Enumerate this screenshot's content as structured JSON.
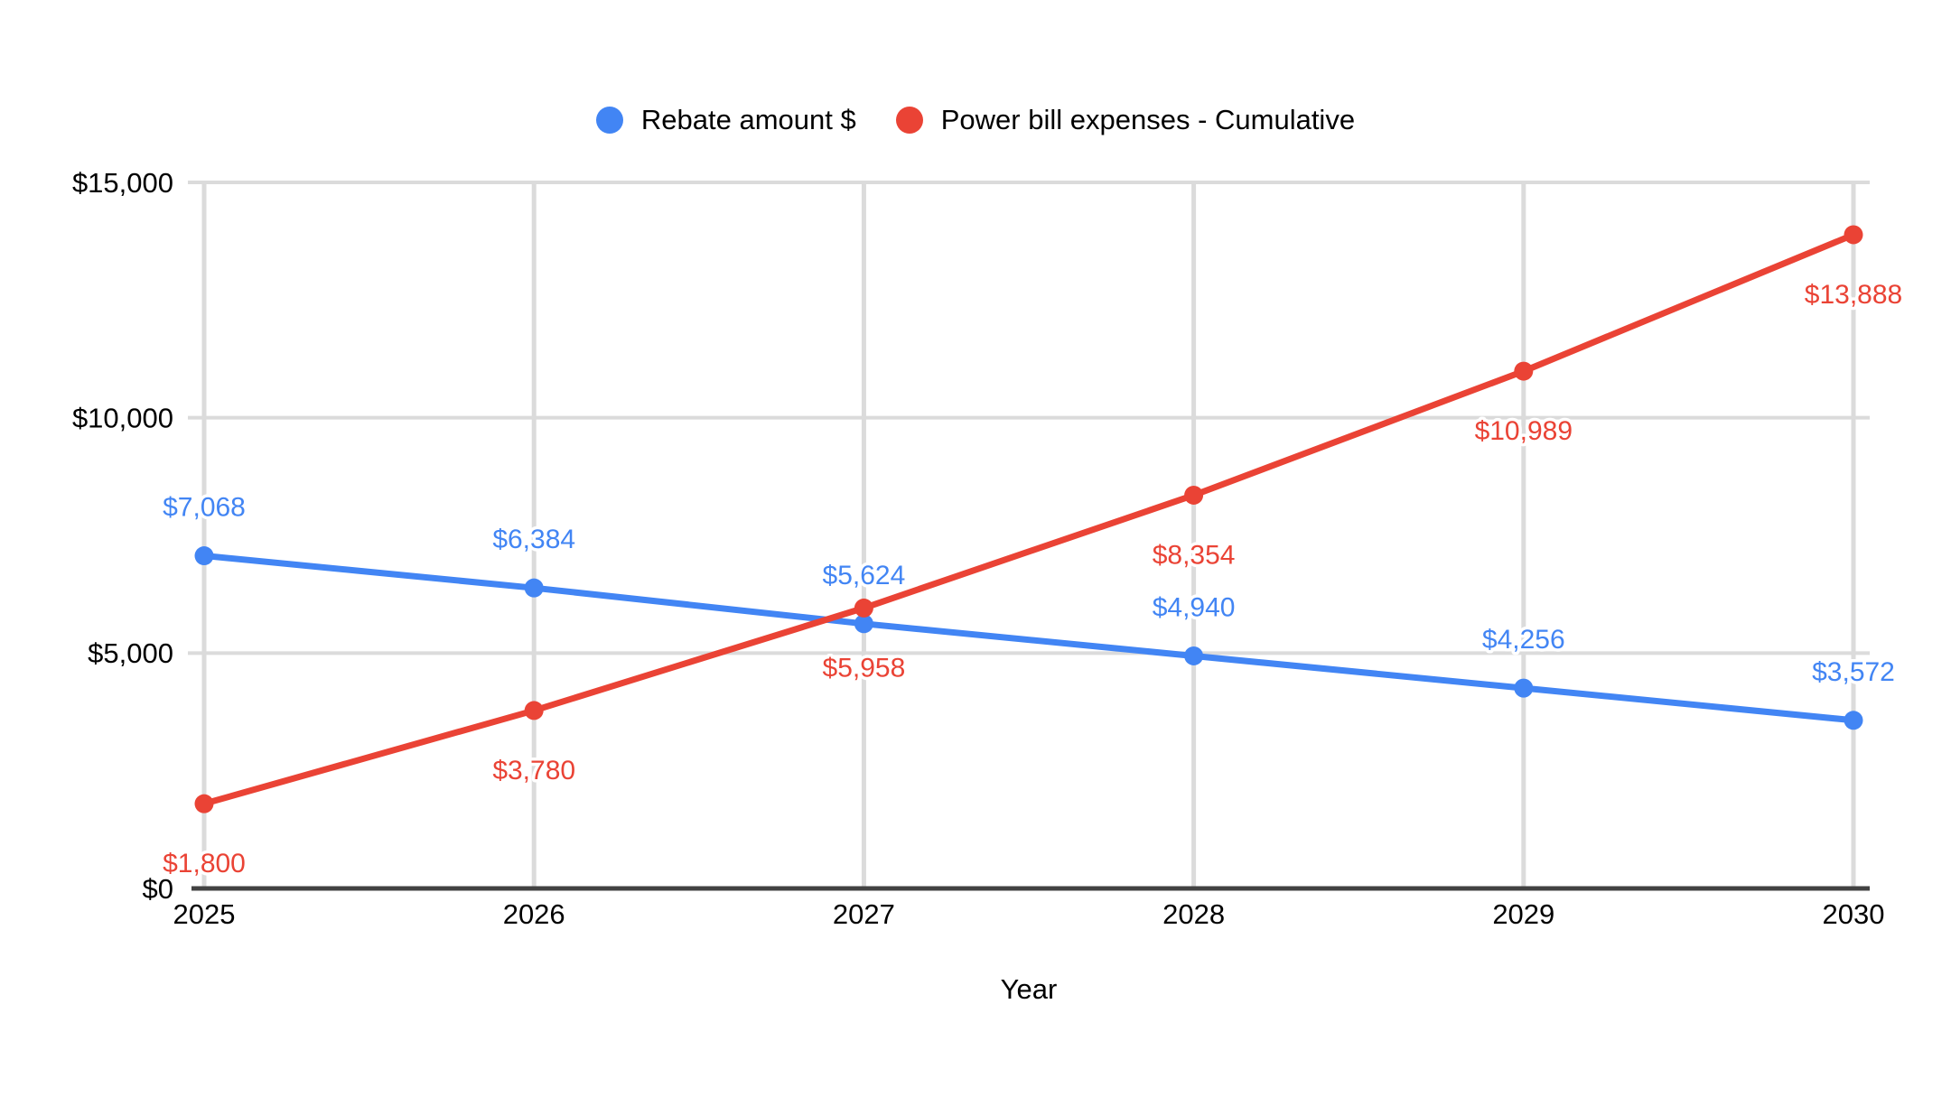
{
  "chart_data": {
    "type": "line",
    "title": "",
    "xlabel": "Year",
    "ylabel": "",
    "x": [
      2025,
      2026,
      2027,
      2028,
      2029,
      2030
    ],
    "x_labels": [
      "2025",
      "2026",
      "2027",
      "2028",
      "2029",
      "2030"
    ],
    "ylim": [
      0,
      15000
    ],
    "grid": true,
    "legend_position": "top-center",
    "y_ticks": [
      {
        "value": 15000,
        "label": "$15,000"
      },
      {
        "value": 10000,
        "label": "$10,000"
      },
      {
        "value": 5000,
        "label": "$5,000"
      },
      {
        "value": 0,
        "label": "$0"
      }
    ],
    "series": [
      {
        "name": "Rebate amount $",
        "color": "#4285F4",
        "values": [
          7068,
          6384,
          5624,
          4940,
          4256,
          3572
        ],
        "labels": [
          "$7,068",
          "$6,384",
          "$5,624",
          "$4,940",
          "$4,256",
          "$3,572"
        ],
        "label_side": "above"
      },
      {
        "name": "Power bill expenses - Cumulative",
        "color": "#EA4335",
        "values": [
          1800,
          3780,
          5958,
          8354,
          10989,
          13888
        ],
        "labels": [
          "$1,800",
          "$3,780",
          "$5,958",
          "$8,354",
          "$10,989",
          "$13,888"
        ],
        "label_side": "below"
      }
    ]
  },
  "colors": {
    "background": "#FFFFFF",
    "gridline": "#DBDBDB",
    "axis_line": "#424242",
    "tick_text": "#000000",
    "axis_title_text": "#000000",
    "label_halo": "#FFFFFF"
  }
}
